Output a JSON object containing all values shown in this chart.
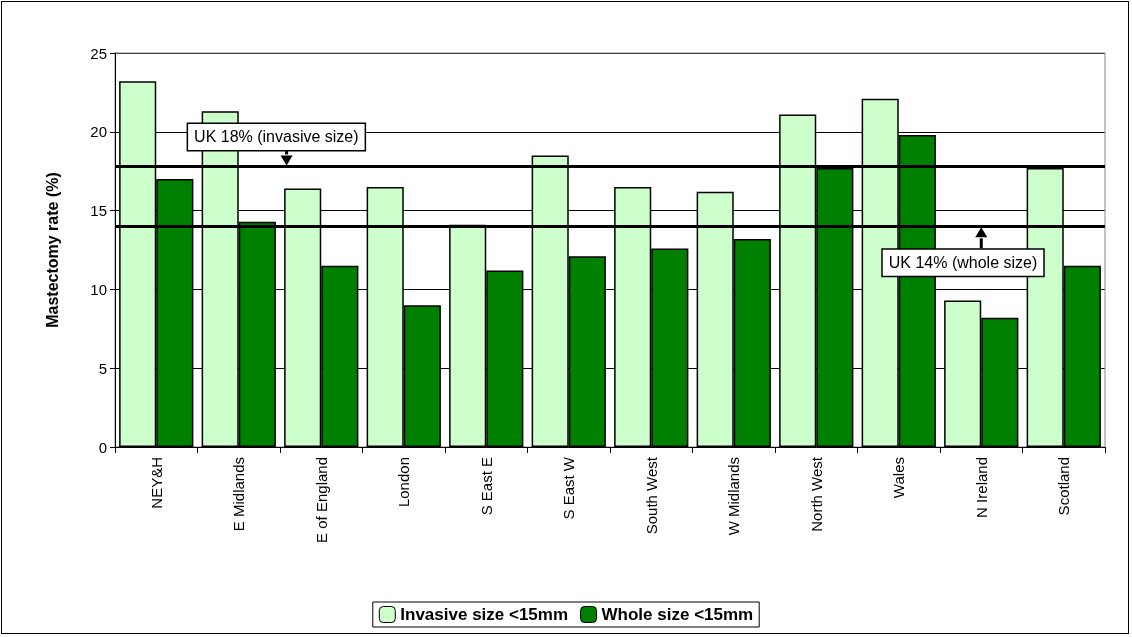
{
  "chart_data": {
    "type": "bar",
    "ylabel": "Mastectomy rate (%)",
    "categories": [
      "NEY&H",
      "E Midlands",
      "E of England",
      "London",
      "S East E",
      "S East W",
      "South West",
      "W Midlands",
      "North West",
      "Wales",
      "N Ireland",
      "Scotland"
    ],
    "series": [
      {
        "name": "Invasive size <15mm",
        "color": "#ccffcc",
        "values": [
          23.2,
          21.3,
          16.4,
          16.5,
          14.1,
          18.5,
          16.5,
          16.2,
          21.1,
          22.1,
          9.3,
          17.7
        ]
      },
      {
        "name": "Whole size <15mm",
        "color": "#008000",
        "values": [
          17.0,
          14.3,
          11.5,
          9.0,
          11.2,
          12.1,
          12.6,
          13.2,
          17.7,
          19.8,
          8.2,
          11.5
        ]
      }
    ],
    "ylim": [
      0,
      25
    ],
    "yticks": [
      0,
      5,
      10,
      15,
      20,
      25
    ],
    "grid": "y",
    "legend": "bottom",
    "ref_lines": [
      {
        "axis": "y",
        "value": 17.8,
        "label": "UK 18% (invasive size)",
        "color": "#000000"
      },
      {
        "axis": "y",
        "value": 14.0,
        "label": "UK 14% (whole size)",
        "color": "#000000"
      }
    ]
  }
}
